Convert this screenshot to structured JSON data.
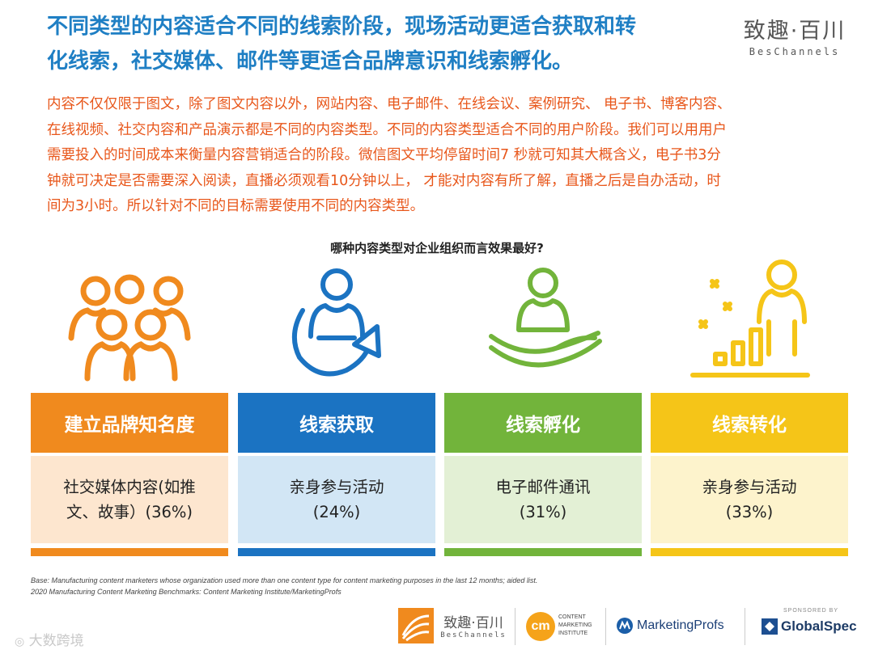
{
  "title_lines": [
    "不同类型的内容适合不同的线索阶段，现场活动更适合获取和转",
    "化线索，社交媒体、邮件等更适合品牌意识和线索孵化。"
  ],
  "brand_logo": {
    "cn": "致趣·百川",
    "en": "BesChannels"
  },
  "body_lines": [
    "内容不仅仅限于图文，除了图文内容以外，网站内容、电子邮件、在线会议、案例研究、 电子书、博客内容、",
    "在线视频、社交内容和产品演示都是不同的内容类型。不同的内容类型适合不同的用户阶段。我们可以用用户",
    "需要投入的时间成本来衡量内容营销适合的阶段。微信图文平均停留时间7 秒就可知其大概含义，电子书3分",
    "钟就可决定是否需要深入阅读，直播必须观看10分钟以上， 才能对内容有所了解，直播之后是自办活动，时",
    "间为3小时。所以针对不同的目标需要使用不同的内容类型。"
  ],
  "question": "哪种内容类型对企业组织而言效果最好?",
  "columns": [
    {
      "icon": "group-people-icon",
      "head": "建立品牌知名度",
      "body_lines": [
        "社交媒体内容(如推",
        "文、故事）(36%)"
      ],
      "color": "#f08a1e",
      "light": "#fde6cf"
    },
    {
      "icon": "person-cycle-arrow-icon",
      "head": "线索获取",
      "body_lines": [
        "亲身参与活动",
        "(24%)"
      ],
      "color": "#1b73c2",
      "light": "#d2e6f5"
    },
    {
      "icon": "hand-holding-person-icon",
      "head": "线索孵化",
      "body_lines": [
        "电子邮件通讯",
        "(31%)"
      ],
      "color": "#72b43b",
      "light": "#e3f0d5"
    },
    {
      "icon": "person-rising-bars-icon",
      "head": "线索转化",
      "body_lines": [
        "亲身参与活动",
        "(33%)"
      ],
      "color": "#f5c518",
      "light": "#fdf3cc"
    }
  ],
  "footnote_lines": [
    "Base: Manufacturing content marketers whose organization used more than one content type for content marketing purposes in the last 12 months; aided list.",
    "2020 Manufacturing Content Marketing Benchmarks: Content Marketing Institute/MarketingProfs"
  ],
  "footer_logos": {
    "beschannels": {
      "cn": "致趣·百川",
      "en": "BesChannels"
    },
    "cmi": {
      "mark": "cm",
      "lines": [
        "CONTENT",
        "MARKETING",
        "INSTITUTE"
      ]
    },
    "marketingprofs": "MarketingProfs",
    "globalspec": {
      "sponsor": "SPONSORED BY",
      "name": "GlobalSpec"
    }
  },
  "watermark": "大数跨境"
}
